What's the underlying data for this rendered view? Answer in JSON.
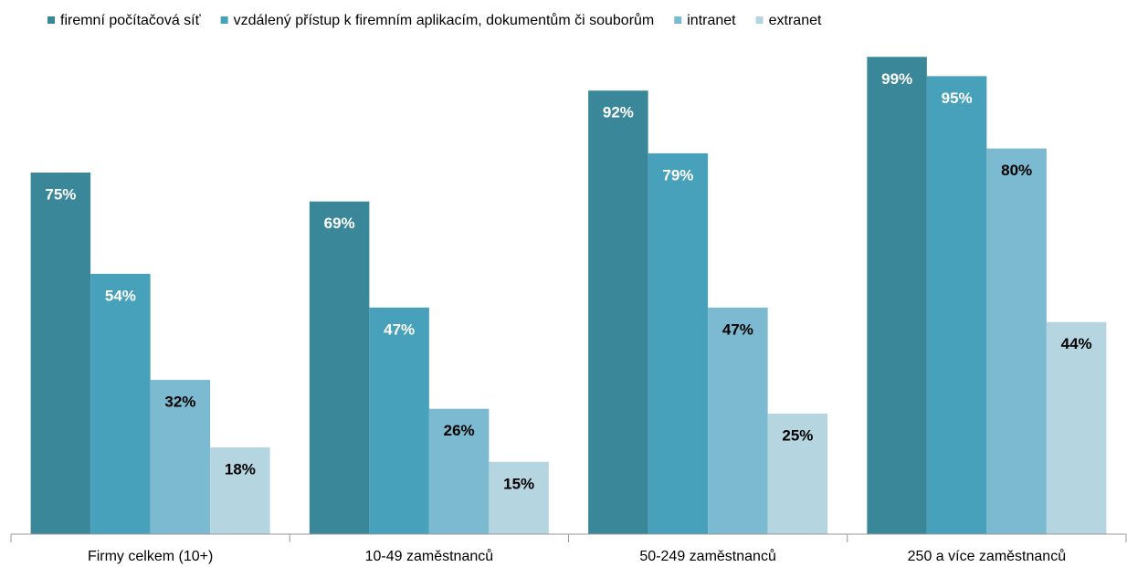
{
  "chart_data": {
    "type": "bar",
    "categories": [
      "Firmy celkem (10+)",
      "10-49 zaměstnanců",
      "50-249 zaměstnanců",
      "250 a více zaměstnanců"
    ],
    "series": [
      {
        "name": "firemní počítačová síť",
        "color": "#3a8799",
        "label_color": "#ffffff",
        "values": [
          75,
          69,
          92,
          99
        ],
        "value_labels": [
          "75%",
          "69%",
          "92%",
          "99%"
        ]
      },
      {
        "name": "vzdálený přístup k firemním aplikacím, dokumentům či souborům",
        "color": "#47a1ba",
        "label_color": "#ffffff",
        "values": [
          54,
          47,
          79,
          95
        ],
        "value_labels": [
          "54%",
          "47%",
          "79%",
          "95%"
        ]
      },
      {
        "name": "intranet",
        "color": "#7bbad0",
        "label_color": "#000000",
        "values": [
          32,
          26,
          47,
          80
        ],
        "value_labels": [
          "32%",
          "26%",
          "47%",
          "80%"
        ]
      },
      {
        "name": "extranet",
        "color": "#b5d5e1",
        "label_color": "#000000",
        "values": [
          18,
          15,
          25,
          44
        ],
        "value_labels": [
          "18%",
          "15%",
          "25%",
          "44%"
        ]
      }
    ],
    "ylim": [
      0,
      100
    ],
    "legend": "top"
  }
}
